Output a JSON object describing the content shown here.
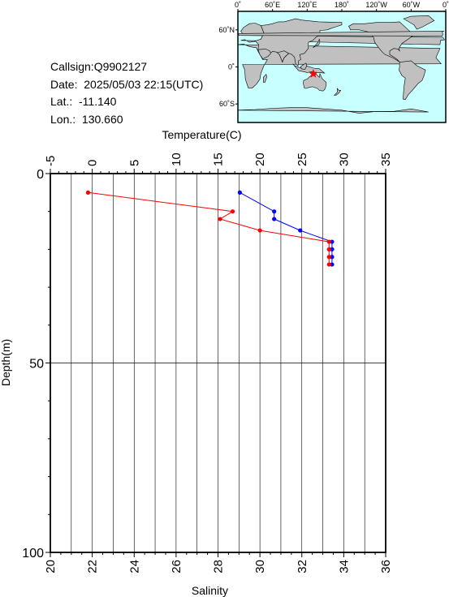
{
  "station": {
    "callsign": "Callsign:Q9902127",
    "date": "Date:  2025/05/03 22:15(UTC)",
    "lat": "Lat.:  -11.140",
    "lon": "Lon.:  130.660"
  },
  "map": {
    "top_labels": [
      "0˚",
      "60˚E",
      "120˚E",
      "180˚",
      "120˚W",
      "60˚W",
      "0˚"
    ],
    "left_labels": [
      "60˚N",
      "0˚",
      "60˚S"
    ],
    "marker": {
      "lon": 130.66,
      "lat": -11.14,
      "color": "#ff0000"
    },
    "ocean_color": "#c8ffff",
    "land_color": "#c0c0c0"
  },
  "chart_data": {
    "type": "line",
    "title": "",
    "top_axis": {
      "label": "Temperature(C)",
      "range": [
        -5,
        35
      ],
      "ticks": [
        -5,
        0,
        5,
        10,
        15,
        20,
        25,
        30,
        35
      ]
    },
    "bottom_axis": {
      "label": "Salinity",
      "range": [
        20,
        36
      ],
      "ticks": [
        20,
        22,
        24,
        26,
        28,
        30,
        32,
        34,
        36
      ]
    },
    "y_axis": {
      "label": "Depth(m)",
      "range": [
        0,
        100
      ],
      "ticks": [
        0,
        50,
        100
      ],
      "inverted": true
    },
    "grid": true,
    "series": [
      {
        "axis": "temperature",
        "color": "#0000ff",
        "points": [
          [
            17.6,
            5
          ],
          [
            21.7,
            10
          ],
          [
            21.7,
            12
          ],
          [
            24.8,
            15
          ],
          [
            28.6,
            18
          ],
          [
            28.6,
            20
          ],
          [
            28.6,
            22
          ],
          [
            28.6,
            24
          ]
        ]
      },
      {
        "axis": "salinity",
        "color": "#ff0000",
        "points": [
          [
            21.8,
            5
          ],
          [
            28.7,
            10
          ],
          [
            28.1,
            12
          ],
          [
            30.0,
            15
          ],
          [
            33.3,
            18
          ],
          [
            33.3,
            20
          ],
          [
            33.3,
            22
          ],
          [
            33.3,
            24
          ]
        ]
      }
    ]
  }
}
